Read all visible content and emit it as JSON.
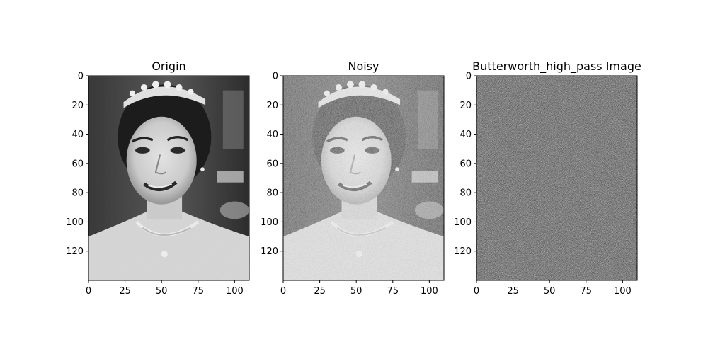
{
  "figure": {
    "panels": [
      {
        "title": "Origin"
      },
      {
        "title": "Noisy"
      },
      {
        "title": "Butterworth_high_pass Image"
      }
    ]
  },
  "chart_data": [
    {
      "type": "heatmap",
      "title": "Origin",
      "colormap": "gray",
      "xlim": [
        0,
        110
      ],
      "ylim": [
        140,
        0
      ],
      "xticks": [
        0,
        25,
        50,
        75,
        100
      ],
      "yticks": [
        0,
        20,
        40,
        60,
        80,
        100,
        120
      ],
      "grid": false
    },
    {
      "type": "heatmap",
      "title": "Noisy",
      "colormap": "gray",
      "xlim": [
        0,
        110
      ],
      "ylim": [
        140,
        0
      ],
      "xticks": [
        0,
        25,
        50,
        75,
        100
      ],
      "yticks": [
        0,
        20,
        40,
        60,
        80,
        100,
        120
      ],
      "grid": false
    },
    {
      "type": "heatmap",
      "title": "Butterworth_high_pass Image",
      "colormap": "gray",
      "xlim": [
        0,
        110
      ],
      "ylim": [
        140,
        0
      ],
      "xticks": [
        0,
        25,
        50,
        75,
        100
      ],
      "yticks": [
        0,
        20,
        40,
        60,
        80,
        100,
        120
      ],
      "grid": false
    }
  ]
}
